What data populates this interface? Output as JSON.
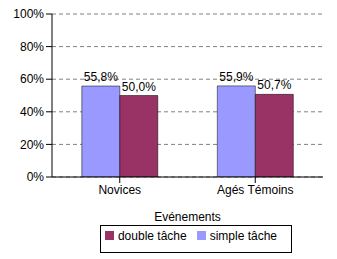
{
  "chart_data": {
    "type": "bar",
    "xlabel": "Evénements",
    "categories": [
      "Novices",
      "Agés Témoins"
    ],
    "series": [
      {
        "name": "simple tâche",
        "color": "#9999ff",
        "values": [
          55.8,
          55.9
        ],
        "value_labels": [
          "55,8%",
          "55,9%"
        ]
      },
      {
        "name": "double tâche",
        "color": "#993366",
        "values": [
          50.0,
          50.7
        ],
        "value_labels": [
          "50,0%",
          "50,7%"
        ]
      }
    ],
    "ylim": [
      0,
      100
    ],
    "yticks": [
      {
        "value": 0,
        "label": "0%"
      },
      {
        "value": 20,
        "label": "20%"
      },
      {
        "value": 40,
        "label": "40%"
      },
      {
        "value": 60,
        "label": "60%"
      },
      {
        "value": 80,
        "label": "80%"
      },
      {
        "value": 100,
        "label": "100%"
      }
    ],
    "grid": true,
    "legend": "bottom",
    "data_labels": true
  }
}
